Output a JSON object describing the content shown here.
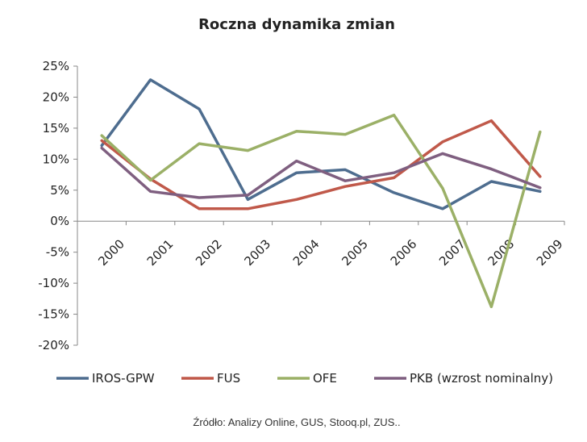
{
  "chart_data": {
    "type": "line",
    "title": "Roczna dynamika zmian",
    "source": "Źródło: Analizy Online, GUS, Stooq.pl, ZUS..",
    "x": [
      "2000",
      "2001",
      "2002",
      "2003",
      "2004",
      "2005",
      "2006",
      "2007",
      "2008",
      "2009"
    ],
    "ylim": [
      -20,
      25
    ],
    "yticks": [
      "25%",
      "20%",
      "15%",
      "10%",
      "5%",
      "0%",
      "-5%",
      "-10%",
      "-15%",
      "-20%"
    ],
    "ytick_values": [
      25,
      20,
      15,
      10,
      5,
      0,
      -5,
      -10,
      -15,
      -20
    ],
    "grid": false,
    "legend_position": "bottom",
    "series": [
      {
        "name": "IROS-GPW",
        "color": "#4e6d8f",
        "values": [
          12.2,
          22.8,
          18.1,
          3.5,
          7.8,
          8.3,
          4.6,
          2.0,
          6.4,
          4.8
        ]
      },
      {
        "name": "FUS",
        "color": "#c0594a",
        "values": [
          13.0,
          6.8,
          2.0,
          2.0,
          3.5,
          5.6,
          7.0,
          12.8,
          16.2,
          7.2
        ]
      },
      {
        "name": "OFE",
        "color": "#9bb067",
        "values": [
          13.8,
          6.6,
          12.5,
          11.4,
          14.5,
          14.0,
          17.1,
          5.3,
          -13.8,
          14.4
        ]
      },
      {
        "name": "PKB (wzrost nominalny)",
        "color": "#7f5f80",
        "values": [
          11.8,
          4.8,
          3.8,
          4.2,
          9.7,
          6.5,
          7.8,
          10.9,
          8.4,
          5.4
        ]
      }
    ]
  }
}
